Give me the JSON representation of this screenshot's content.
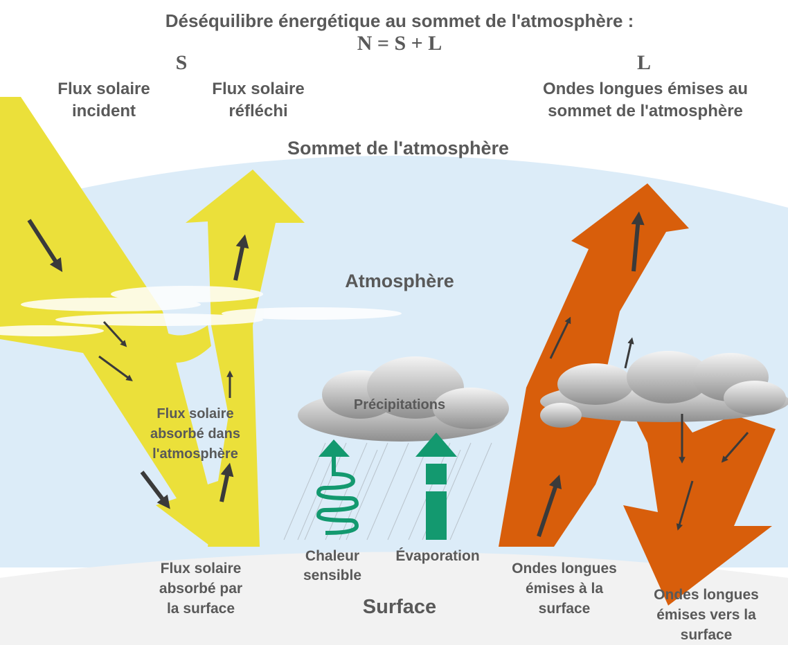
{
  "title": "Déséquilibre énergétique au sommet de l'atmosphère :",
  "equation": "N = S + L",
  "symbols": {
    "s": "S",
    "l": "L"
  },
  "labels": {
    "incident": [
      "Flux solaire",
      "incident"
    ],
    "reflected": [
      "Flux solaire",
      "réfléchi"
    ],
    "olr": [
      "Ondes longues émises au",
      "sommet de l'atmosphère"
    ],
    "toa": "Sommet de l'atmosphère",
    "atmosphere": "Atmosphère",
    "absorbed_atm": [
      "Flux solaire",
      "absorbé dans",
      "l'atmosphère"
    ],
    "precipitation": "Précipitations",
    "sensible": [
      "Chaleur",
      "sensible"
    ],
    "evaporation": "Évaporation",
    "absorbed_sfc": [
      "Flux solaire",
      "absorbé par",
      "la surface"
    ],
    "surface": "Surface",
    "lw_up": [
      "Ondes longues",
      "émises à la",
      "surface"
    ],
    "lw_down": [
      "Ondes longues",
      "émises vers la",
      "surface"
    ]
  }
}
